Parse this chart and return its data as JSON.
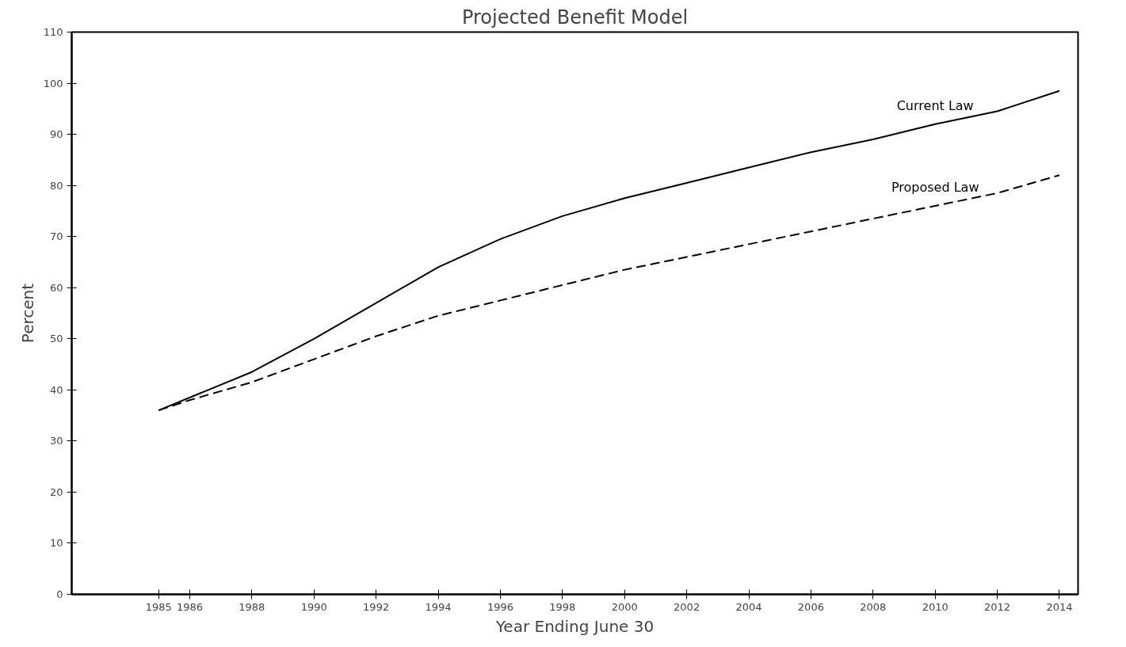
{
  "chart_data": {
    "type": "line",
    "title": "Projected Benefit Model",
    "xlabel": "Year Ending June 30",
    "ylabel": "Percent",
    "x": [
      1985,
      1986,
      1988,
      1990,
      1992,
      1994,
      1996,
      1998,
      2000,
      2002,
      2004,
      2006,
      2008,
      2010,
      2012,
      2014
    ],
    "series": [
      {
        "name": "Current Law",
        "color": "#000000",
        "line_style": "solid",
        "values": [
          36,
          38.5,
          43.5,
          50,
          57,
          64,
          69.5,
          74,
          77.5,
          80.5,
          83.5,
          86.5,
          89,
          92,
          94.5,
          98.5
        ]
      },
      {
        "name": "Proposed Law",
        "color": "#000000",
        "line_style": "dashed",
        "values": [
          36,
          38,
          41.5,
          46,
          50.5,
          54.5,
          57.5,
          60.5,
          63.5,
          66,
          68.5,
          71,
          73.5,
          76,
          78.5,
          82
        ]
      }
    ],
    "xlim": [
      1982.2,
      2014.6
    ],
    "ylim": [
      0,
      110
    ],
    "xticks": [
      1985,
      1986,
      1988,
      1990,
      1992,
      1994,
      1996,
      1998,
      2000,
      2002,
      2004,
      2006,
      2008,
      2010,
      2012,
      2014
    ],
    "yticks": [
      0,
      10,
      20,
      30,
      40,
      50,
      60,
      70,
      80,
      90,
      100,
      110
    ],
    "grid": false,
    "marker": "none"
  }
}
